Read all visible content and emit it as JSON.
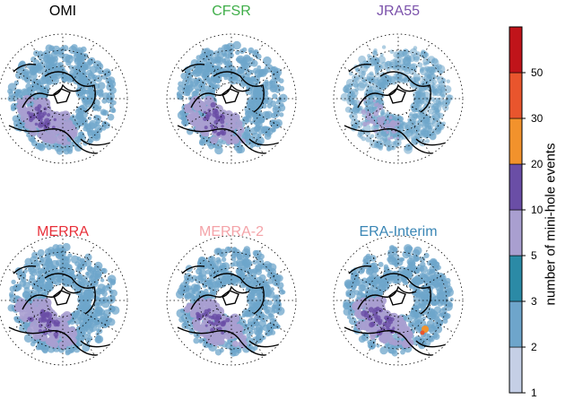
{
  "chart_data": {
    "type": "heatmap",
    "projection": "north-polar-stereographic",
    "panels": [
      {
        "title": "OMI",
        "title_color": "#000000",
        "max_events": 10
      },
      {
        "title": "CFSR",
        "title_color": "#3fae49",
        "max_events": 10
      },
      {
        "title": "JRA55",
        "title_color": "#7b52ab",
        "max_events": 5
      },
      {
        "title": "MERRA",
        "title_color": "#e8303a",
        "max_events": 10
      },
      {
        "title": "MERRA-2",
        "title_color": "#f4a3a8",
        "max_events": 10
      },
      {
        "title": "ERA-Interim",
        "title_color": "#3a86b5",
        "max_events": 30
      }
    ],
    "colorbar": {
      "label": "number of mini-hole events",
      "ticks": [
        "1",
        "2",
        "3",
        "5",
        "10",
        "20",
        "30",
        "50"
      ],
      "colors": [
        "#c5cfe6",
        "#6ea5cb",
        "#2b8aa6",
        "#a99fd0",
        "#6a4ea6",
        "#f2922c",
        "#e9552d",
        "#c0141a"
      ],
      "scale": "nonlinear"
    },
    "grid": true
  }
}
